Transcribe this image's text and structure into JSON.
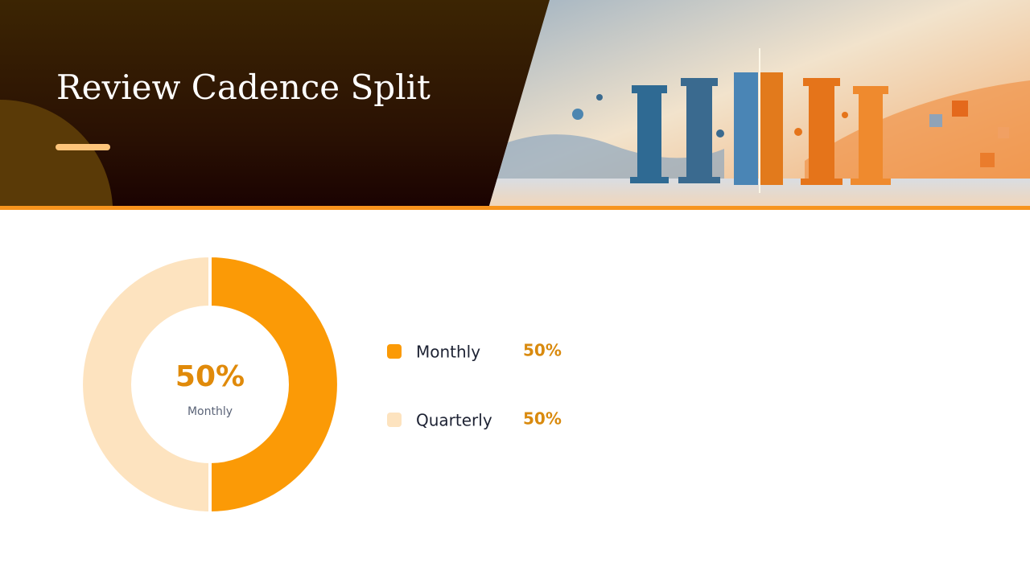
{
  "chart_data": {
    "type": "donut",
    "title": "Review Cadence Split",
    "categories": [
      "Monthly",
      "Quarterly"
    ],
    "values": [
      50,
      50
    ],
    "value_labels": [
      "50%",
      "50%"
    ],
    "colors": [
      "#fb9a06",
      "#fde3bf"
    ]
  }
}
